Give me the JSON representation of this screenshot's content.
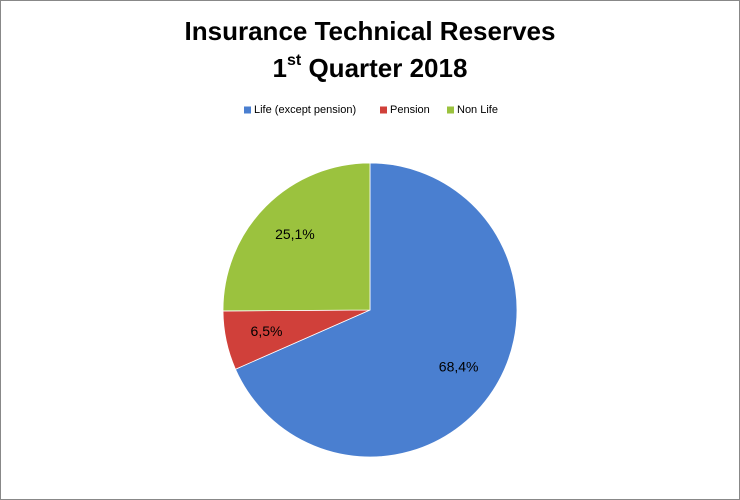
{
  "chart_data": {
    "type": "pie",
    "title": "Insurance Technical Reserves",
    "subtitle": [
      "1",
      "st",
      " Quarter 2018"
    ],
    "categories": [
      "Life (except pension)",
      "Pension",
      "Non Life"
    ],
    "values": [
      68.4,
      6.5,
      25.1
    ],
    "value_labels": [
      "68,4%",
      "6,5%",
      "25,1%"
    ],
    "colors": [
      "#4a7fd0",
      "#d0403a",
      "#9bc23e"
    ],
    "legend": "top"
  }
}
